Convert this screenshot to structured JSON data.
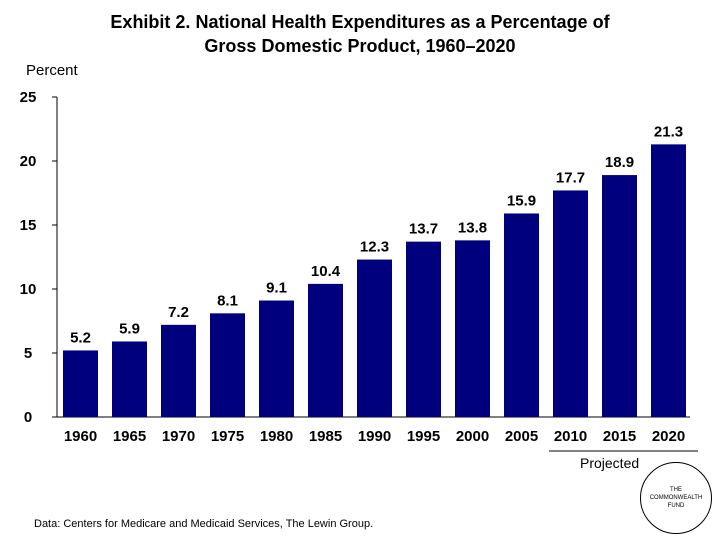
{
  "title_line1": "Exhibit 2. National Health Expenditures as a Percentage of",
  "title_line2": "Gross Domestic Product, 1960–2020",
  "ylabel": "Percent",
  "projected_label": "Projected",
  "logo_text": "THE COMMONWEALTH FUND",
  "source": "Data: Centers for Medicare and Medicaid Services, The Lewin Group.",
  "colors": {
    "bar": "#00007f",
    "axis": "#000000"
  },
  "chart_data": {
    "type": "bar",
    "title": "Exhibit 2. National Health Expenditures as a Percentage of Gross Domestic Product, 1960–2020",
    "xlabel": "",
    "ylabel": "Percent",
    "categories": [
      "1960",
      "1965",
      "1970",
      "1975",
      "1980",
      "1985",
      "1990",
      "1995",
      "2000",
      "2005",
      "2010",
      "2015",
      "2020"
    ],
    "values": [
      5.2,
      5.9,
      7.2,
      8.1,
      9.1,
      10.4,
      12.3,
      13.7,
      13.8,
      15.9,
      17.7,
      18.9,
      21.3
    ],
    "value_labels": [
      "5.2",
      "5.9",
      "7.2",
      "8.1",
      "9.1",
      "10.4",
      "12.3",
      "13.7",
      "13.8",
      "15.9",
      "17.7",
      "18.9",
      "21.3"
    ],
    "ylim": [
      0,
      25
    ],
    "yticks": [
      0,
      5,
      10,
      15,
      20,
      25
    ],
    "grid": false,
    "projected_categories": [
      "2010",
      "2015",
      "2020"
    ]
  }
}
